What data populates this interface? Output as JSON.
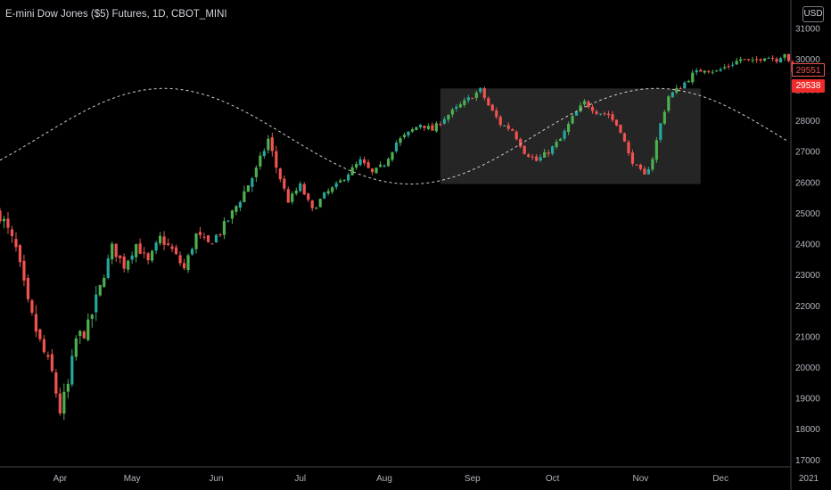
{
  "header": {
    "symbol_title": "E-mini Dow Jones ($5) Futures, 1D, CBOT_MINI",
    "currency": "USD"
  },
  "price_tags": {
    "last_close": "29551",
    "current": "29538"
  },
  "colors": {
    "background": "#000000",
    "up": "#26a69a",
    "up_alt": "#4caf50",
    "down": "#ef5350",
    "axis_text": "#b2b5be",
    "overlay": "#2a2a2a",
    "wave": "#cfcfcf"
  },
  "chart_data": {
    "type": "candlestick",
    "title": "E-mini Dow Jones ($5) Futures, 1D, CBOT_MINI",
    "xlabel": "",
    "ylabel": "",
    "ylim": [
      16800,
      31500
    ],
    "grid": false,
    "x_ticks": [
      "Apr",
      "May",
      "Jun",
      "Jul",
      "Aug",
      "Sep",
      "Oct",
      "Nov",
      "Dec",
      "2021"
    ],
    "y_ticks": [
      17000,
      18000,
      19000,
      20000,
      21000,
      22000,
      23000,
      24000,
      25000,
      26000,
      27000,
      28000,
      29000,
      30000,
      31000
    ],
    "close_path": [
      [
        0,
        25000
      ],
      [
        4,
        23800
      ],
      [
        7,
        22000
      ],
      [
        10,
        20800
      ],
      [
        13,
        19800
      ],
      [
        15,
        18600
      ],
      [
        17,
        19400
      ],
      [
        19,
        20900
      ],
      [
        22,
        21300
      ],
      [
        25,
        22600
      ],
      [
        28,
        23900
      ],
      [
        31,
        23300
      ],
      [
        34,
        24000
      ],
      [
        37,
        23400
      ],
      [
        40,
        24200
      ],
      [
        43,
        23800
      ],
      [
        46,
        23200
      ],
      [
        49,
        24300
      ],
      [
        52,
        24000
      ],
      [
        55,
        24400
      ],
      [
        58,
        25000
      ],
      [
        61,
        25700
      ],
      [
        64,
        26400
      ],
      [
        67,
        27400
      ],
      [
        69,
        26500
      ],
      [
        72,
        25400
      ],
      [
        75,
        25900
      ],
      [
        78,
        25100
      ],
      [
        81,
        25600
      ],
      [
        84,
        25900
      ],
      [
        87,
        26300
      ],
      [
        90,
        26700
      ],
      [
        93,
        26300
      ],
      [
        96,
        26600
      ],
      [
        99,
        27300
      ],
      [
        102,
        27600
      ],
      [
        105,
        27900
      ],
      [
        108,
        27700
      ],
      [
        111,
        28100
      ],
      [
        114,
        28400
      ],
      [
        117,
        28700
      ],
      [
        120,
        29000
      ],
      [
        122,
        28500
      ],
      [
        125,
        27900
      ],
      [
        128,
        27700
      ],
      [
        131,
        27000
      ],
      [
        134,
        26700
      ],
      [
        137,
        27000
      ],
      [
        140,
        27400
      ],
      [
        143,
        28100
      ],
      [
        146,
        28600
      ],
      [
        149,
        28300
      ],
      [
        152,
        28200
      ],
      [
        155,
        27700
      ],
      [
        157,
        26900
      ],
      [
        159,
        26500
      ],
      [
        161,
        26200
      ],
      [
        163,
        26800
      ],
      [
        165,
        27900
      ],
      [
        167,
        28800
      ],
      [
        170,
        29100
      ],
      [
        173,
        29500
      ],
      [
        176,
        29700
      ],
      [
        179,
        29600
      ],
      [
        182,
        29800
      ],
      [
        185,
        30000
      ],
      [
        188,
        29900
      ],
      [
        191,
        30100
      ],
      [
        194,
        30000
      ],
      [
        196,
        30200
      ],
      [
        198,
        29540
      ]
    ],
    "wave": {
      "baseline": 25950,
      "peak": 29050,
      "period_sessions": 123,
      "phase_peak_session": 41
    },
    "highlight_box": {
      "x_range": [
        "Sep",
        "Dec"
      ],
      "y_range": [
        25950,
        29050
      ]
    },
    "annotations": [
      {
        "label": "29551",
        "price": 29551,
        "style": "dashed-line"
      },
      {
        "label": "29538",
        "price": 29538,
        "style": "current-price"
      }
    ]
  }
}
